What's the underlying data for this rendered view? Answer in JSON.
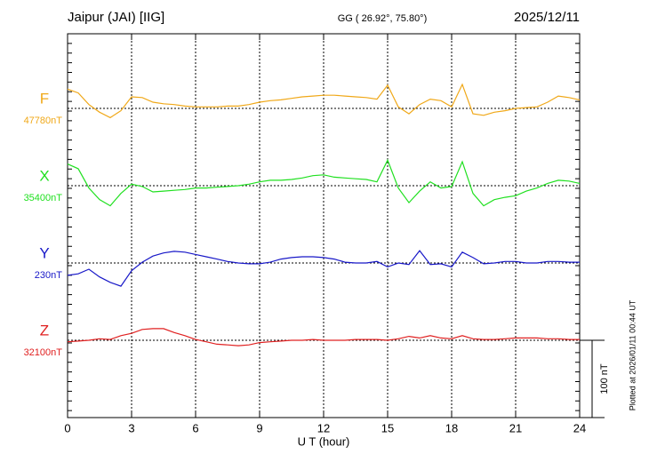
{
  "chart_data": {
    "type": "line",
    "title": "Jaipur (JAI)  [IIG]",
    "subtitle": "GG ( 26.92°,  75.80°)",
    "date": "2025/12/11",
    "xlabel": "U T (hour)",
    "plotted_note": "Plotted at 2026/01/11 00:44 UT",
    "scale_bar": {
      "value": 100,
      "label": "100 nT"
    },
    "xlim": [
      0,
      24
    ],
    "xticks": [
      0,
      3,
      6,
      9,
      12,
      15,
      18,
      21,
      24
    ],
    "grid": true,
    "x": [
      0,
      0.5,
      1,
      1.5,
      2,
      2.5,
      3,
      3.5,
      4,
      4.5,
      5,
      5.5,
      6,
      6.5,
      7,
      7.5,
      8,
      8.5,
      9,
      9.5,
      10,
      10.5,
      11,
      11.5,
      12,
      12.5,
      13,
      13.5,
      14,
      14.5,
      15,
      15.5,
      16,
      16.5,
      17,
      17.5,
      18,
      18.5,
      19,
      19.5,
      20,
      20.5,
      21,
      21.5,
      22,
      22.5,
      23,
      23.5,
      24
    ],
    "series": [
      {
        "name": "F",
        "color": "#f0a818",
        "baseline": {
          "value": 47780,
          "label": "47780nT"
        },
        "values": [
          47805,
          47800,
          47785,
          47775,
          47768,
          47777,
          47795,
          47794,
          47788,
          47786,
          47785,
          47783,
          47782,
          47782,
          47782,
          47783,
          47783,
          47785,
          47788,
          47790,
          47791,
          47793,
          47795,
          47796,
          47797,
          47797,
          47796,
          47795,
          47794,
          47792,
          47810,
          47782,
          47773,
          47785,
          47792,
          47790,
          47782,
          47811,
          47773,
          47771,
          47775,
          47777,
          47780,
          47781,
          47782,
          47788,
          47796,
          47794,
          47791
        ]
      },
      {
        "name": "X",
        "color": "#20e020",
        "baseline": {
          "value": 35400,
          "label": "35400nT"
        },
        "values": [
          35428,
          35422,
          35397,
          35382,
          35374,
          35390,
          35402,
          35399,
          35392,
          35393,
          35394,
          35395,
          35397,
          35397,
          35398,
          35399,
          35400,
          35402,
          35405,
          35407,
          35407,
          35408,
          35410,
          35413,
          35414,
          35411,
          35410,
          35409,
          35408,
          35405,
          35433,
          35397,
          35378,
          35393,
          35405,
          35397,
          35399,
          35431,
          35390,
          35374,
          35382,
          35385,
          35387,
          35393,
          35397,
          35403,
          35407,
          35406,
          35403
        ]
      },
      {
        "name": "Y",
        "color": "#1818c8",
        "baseline": {
          "value": 230,
          "label": "230nT"
        },
        "values": [
          214,
          216,
          222,
          212,
          205,
          200,
          220,
          231,
          239,
          243,
          245,
          244,
          241,
          238,
          235,
          232,
          230,
          229,
          229,
          231,
          235,
          237,
          238,
          238,
          237,
          235,
          231,
          230,
          230,
          232,
          225,
          230,
          228,
          246,
          228,
          229,
          225,
          244,
          237,
          229,
          230,
          232,
          232,
          230,
          230,
          232,
          232,
          231,
          231
        ]
      },
      {
        "name": "Z",
        "color": "#e02020",
        "baseline": {
          "value": 32100,
          "label": "32100nT"
        },
        "values": [
          32098,
          32099,
          32100,
          32102,
          32101,
          32106,
          32109,
          32114,
          32115,
          32115,
          32110,
          32106,
          32101,
          32098,
          32095,
          32094,
          32093,
          32094,
          32097,
          32098,
          32099,
          32100,
          32100,
          32101,
          32100,
          32100,
          32100,
          32101,
          32101,
          32101,
          32100,
          32102,
          32105,
          32103,
          32106,
          32103,
          32102,
          32106,
          32102,
          32101,
          32101,
          32102,
          32103,
          32103,
          32103,
          32102,
          32102,
          32101,
          32101
        ]
      }
    ]
  }
}
